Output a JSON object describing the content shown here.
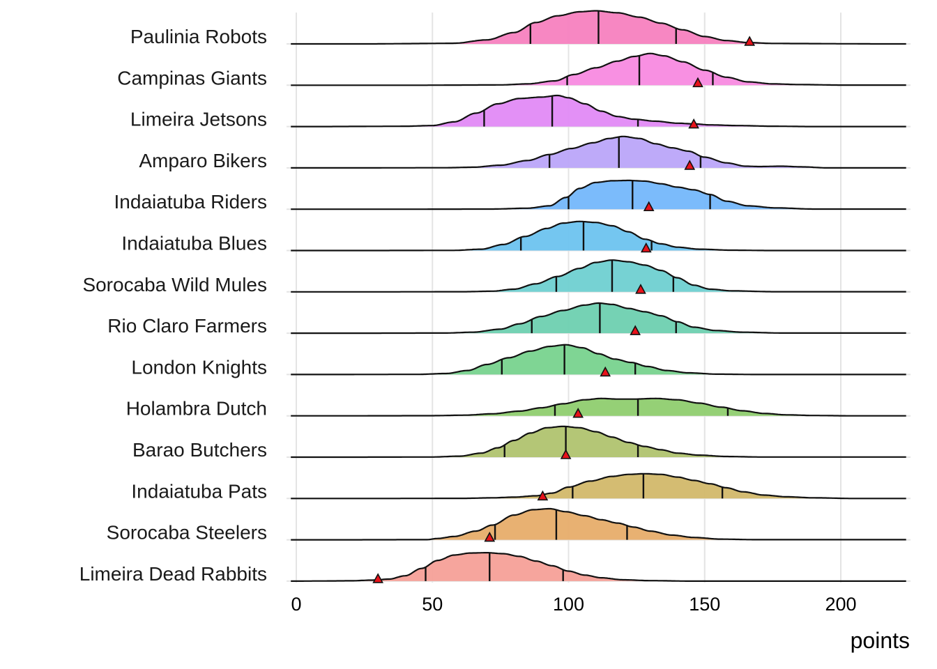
{
  "chart_data": {
    "type": "ridgeline",
    "title": "",
    "xlabel": "points",
    "ylabel": "",
    "xlim": [
      -2,
      224
    ],
    "x_ticks": [
      0,
      50,
      100,
      150,
      200
    ],
    "grid": true,
    "quantile_lines": "quartiles (25th, 50th, 75th percentile)",
    "point_marker": "red triangle",
    "series": [
      {
        "name": "Paulinia Robots",
        "color": "#f781bf",
        "q1": 86,
        "median": 111,
        "q3": 139.5,
        "point": 166.5,
        "density": [
          [
            58,
            0.02
          ],
          [
            70,
            0.12
          ],
          [
            80,
            0.34
          ],
          [
            88,
            0.64
          ],
          [
            96,
            0.84
          ],
          [
            104,
            0.96
          ],
          [
            110,
            0.99
          ],
          [
            118,
            0.93
          ],
          [
            126,
            0.8
          ],
          [
            134,
            0.62
          ],
          [
            142,
            0.42
          ],
          [
            150,
            0.22
          ],
          [
            158,
            0.1
          ],
          [
            166,
            0.04
          ],
          [
            175,
            0.015
          ],
          [
            185,
            0.01
          ],
          [
            200,
            0.005
          ],
          [
            215,
            0.0
          ]
        ]
      },
      {
        "name": "Campinas Giants",
        "color": "#f88ae0",
        "q1": 99.5,
        "median": 126,
        "q3": 153,
        "point": 147.5,
        "density": [
          [
            75,
            0.01
          ],
          [
            85,
            0.04
          ],
          [
            95,
            0.13
          ],
          [
            102,
            0.32
          ],
          [
            110,
            0.52
          ],
          [
            118,
            0.72
          ],
          [
            124,
            0.86
          ],
          [
            130,
            0.95
          ],
          [
            135,
            0.88
          ],
          [
            142,
            0.7
          ],
          [
            150,
            0.45
          ],
          [
            158,
            0.24
          ],
          [
            166,
            0.1
          ],
          [
            175,
            0.04
          ],
          [
            185,
            0.02
          ],
          [
            200,
            0.005
          ]
        ]
      },
      {
        "name": "Limeira Jetsons",
        "color": "#e28af6",
        "q1": 69,
        "median": 94,
        "q3": 125.5,
        "point": 146,
        "density": [
          [
            40,
            0.01
          ],
          [
            50,
            0.03
          ],
          [
            58,
            0.14
          ],
          [
            66,
            0.4
          ],
          [
            74,
            0.68
          ],
          [
            82,
            0.84
          ],
          [
            90,
            0.88
          ],
          [
            96,
            0.93
          ],
          [
            100,
            0.86
          ],
          [
            106,
            0.68
          ],
          [
            112,
            0.46
          ],
          [
            118,
            0.3
          ],
          [
            124,
            0.22
          ],
          [
            132,
            0.16
          ],
          [
            140,
            0.1
          ],
          [
            146,
            0.08
          ],
          [
            152,
            0.05
          ],
          [
            162,
            0.03
          ],
          [
            175,
            0.01
          ],
          [
            190,
            0.0
          ]
        ]
      },
      {
        "name": "Amparo Bikers",
        "color": "#bba5f9",
        "q1": 93,
        "median": 118.5,
        "q3": 148.5,
        "point": 144.5,
        "density": [
          [
            55,
            0.005
          ],
          [
            65,
            0.02
          ],
          [
            75,
            0.08
          ],
          [
            85,
            0.22
          ],
          [
            93,
            0.4
          ],
          [
            101,
            0.58
          ],
          [
            109,
            0.75
          ],
          [
            115,
            0.88
          ],
          [
            120,
            0.94
          ],
          [
            126,
            0.88
          ],
          [
            132,
            0.72
          ],
          [
            138,
            0.6
          ],
          [
            144,
            0.5
          ],
          [
            150,
            0.32
          ],
          [
            158,
            0.15
          ],
          [
            165,
            0.05
          ],
          [
            170,
            0.04
          ],
          [
            178,
            0.05
          ],
          [
            186,
            0.03
          ],
          [
            195,
            0.0
          ]
        ]
      },
      {
        "name": "Indaiatuba Riders",
        "color": "#74b7fb",
        "q1": 100,
        "median": 123.5,
        "q3": 152,
        "point": 129.5,
        "density": [
          [
            72,
            0.005
          ],
          [
            85,
            0.03
          ],
          [
            93,
            0.1
          ],
          [
            99,
            0.35
          ],
          [
            104,
            0.62
          ],
          [
            110,
            0.8
          ],
          [
            116,
            0.85
          ],
          [
            122,
            0.86
          ],
          [
            128,
            0.84
          ],
          [
            134,
            0.76
          ],
          [
            140,
            0.66
          ],
          [
            146,
            0.58
          ],
          [
            152,
            0.44
          ],
          [
            158,
            0.24
          ],
          [
            166,
            0.1
          ],
          [
            176,
            0.04
          ],
          [
            190,
            0.005
          ]
        ]
      },
      {
        "name": "Indaiatuba Blues",
        "color": "#6dc3ef",
        "q1": 82.5,
        "median": 105.5,
        "q3": 130.5,
        "point": 128.5,
        "density": [
          [
            58,
            0.005
          ],
          [
            68,
            0.04
          ],
          [
            76,
            0.18
          ],
          [
            84,
            0.42
          ],
          [
            92,
            0.66
          ],
          [
            98,
            0.82
          ],
          [
            104,
            0.87
          ],
          [
            110,
            0.84
          ],
          [
            116,
            0.74
          ],
          [
            122,
            0.56
          ],
          [
            128,
            0.34
          ],
          [
            134,
            0.2
          ],
          [
            140,
            0.1
          ],
          [
            148,
            0.04
          ],
          [
            160,
            0.01
          ],
          [
            175,
            0.0
          ]
        ]
      },
      {
        "name": "Sorocaba Wild Mules",
        "color": "#6fd0d1",
        "q1": 95.5,
        "median": 116,
        "q3": 138.5,
        "point": 126.5,
        "density": [
          [
            62,
            0.005
          ],
          [
            72,
            0.02
          ],
          [
            80,
            0.08
          ],
          [
            88,
            0.24
          ],
          [
            96,
            0.46
          ],
          [
            104,
            0.7
          ],
          [
            110,
            0.88
          ],
          [
            116,
            0.95
          ],
          [
            122,
            0.9
          ],
          [
            128,
            0.8
          ],
          [
            134,
            0.64
          ],
          [
            140,
            0.42
          ],
          [
            146,
            0.2
          ],
          [
            152,
            0.08
          ],
          [
            160,
            0.03
          ],
          [
            175,
            0.005
          ]
        ]
      },
      {
        "name": "Rio Claro Farmers",
        "color": "#6ed0b0",
        "q1": 86.5,
        "median": 111.5,
        "q3": 139.5,
        "point": 124.5,
        "density": [
          [
            55,
            0.005
          ],
          [
            65,
            0.03
          ],
          [
            75,
            0.12
          ],
          [
            82,
            0.28
          ],
          [
            90,
            0.5
          ],
          [
            98,
            0.68
          ],
          [
            106,
            0.84
          ],
          [
            111,
            0.9
          ],
          [
            116,
            0.86
          ],
          [
            122,
            0.74
          ],
          [
            128,
            0.64
          ],
          [
            134,
            0.52
          ],
          [
            140,
            0.34
          ],
          [
            146,
            0.18
          ],
          [
            154,
            0.08
          ],
          [
            164,
            0.03
          ],
          [
            178,
            0.005
          ]
        ]
      },
      {
        "name": "London Knights",
        "color": "#78d38e",
        "q1": 75.5,
        "median": 98.5,
        "q3": 124.5,
        "point": 113.5,
        "density": [
          [
            45,
            0.005
          ],
          [
            55,
            0.03
          ],
          [
            63,
            0.12
          ],
          [
            70,
            0.3
          ],
          [
            78,
            0.5
          ],
          [
            86,
            0.7
          ],
          [
            93,
            0.84
          ],
          [
            99,
            0.89
          ],
          [
            105,
            0.8
          ],
          [
            111,
            0.62
          ],
          [
            117,
            0.46
          ],
          [
            123,
            0.36
          ],
          [
            129,
            0.24
          ],
          [
            136,
            0.12
          ],
          [
            144,
            0.05
          ],
          [
            155,
            0.01
          ],
          [
            170,
            0.0
          ]
        ]
      },
      {
        "name": "Holambra Dutch",
        "color": "#8fcd6f",
        "q1": 95,
        "median": 125.5,
        "q3": 158.5,
        "point": 103.5,
        "density": [
          [
            50,
            0.005
          ],
          [
            62,
            0.02
          ],
          [
            72,
            0.06
          ],
          [
            82,
            0.14
          ],
          [
            90,
            0.24
          ],
          [
            98,
            0.36
          ],
          [
            106,
            0.48
          ],
          [
            112,
            0.52
          ],
          [
            118,
            0.5
          ],
          [
            124,
            0.5
          ],
          [
            132,
            0.52
          ],
          [
            140,
            0.48
          ],
          [
            148,
            0.38
          ],
          [
            156,
            0.26
          ],
          [
            164,
            0.15
          ],
          [
            172,
            0.07
          ],
          [
            180,
            0.03
          ],
          [
            190,
            0.01
          ],
          [
            205,
            0.0
          ]
        ]
      },
      {
        "name": "Barao Butchers",
        "color": "#b0c36f",
        "q1": 76.5,
        "median": 99,
        "q3": 125.5,
        "point": 99,
        "density": [
          [
            50,
            0.005
          ],
          [
            60,
            0.03
          ],
          [
            68,
            0.12
          ],
          [
            74,
            0.28
          ],
          [
            80,
            0.5
          ],
          [
            86,
            0.72
          ],
          [
            92,
            0.88
          ],
          [
            98,
            0.92
          ],
          [
            104,
            0.88
          ],
          [
            110,
            0.76
          ],
          [
            116,
            0.6
          ],
          [
            122,
            0.44
          ],
          [
            128,
            0.32
          ],
          [
            134,
            0.22
          ],
          [
            140,
            0.12
          ],
          [
            148,
            0.06
          ],
          [
            158,
            0.02
          ],
          [
            170,
            0.005
          ]
        ]
      },
      {
        "name": "Indaiatuba Pats",
        "color": "#d2b86a",
        "q1": 101.5,
        "median": 127.5,
        "q3": 156.5,
        "point": 90.5,
        "density": [
          [
            62,
            0.005
          ],
          [
            72,
            0.02
          ],
          [
            80,
            0.04
          ],
          [
            88,
            0.08
          ],
          [
            94,
            0.16
          ],
          [
            100,
            0.34
          ],
          [
            108,
            0.52
          ],
          [
            116,
            0.66
          ],
          [
            122,
            0.72
          ],
          [
            128,
            0.74
          ],
          [
            134,
            0.72
          ],
          [
            140,
            0.64
          ],
          [
            146,
            0.54
          ],
          [
            152,
            0.44
          ],
          [
            158,
            0.32
          ],
          [
            164,
            0.2
          ],
          [
            172,
            0.1
          ],
          [
            180,
            0.05
          ],
          [
            190,
            0.02
          ],
          [
            205,
            0.0
          ]
        ]
      },
      {
        "name": "Sorocaba Steelers",
        "color": "#e7ad6a",
        "q1": 73,
        "median": 95.5,
        "q3": 121.5,
        "point": 71,
        "density": [
          [
            48,
            0.005
          ],
          [
            52,
            0.04
          ],
          [
            58,
            0.1
          ],
          [
            66,
            0.26
          ],
          [
            72,
            0.44
          ],
          [
            80,
            0.74
          ],
          [
            87,
            0.9
          ],
          [
            93,
            0.93
          ],
          [
            99,
            0.84
          ],
          [
            106,
            0.72
          ],
          [
            112,
            0.6
          ],
          [
            118,
            0.5
          ],
          [
            124,
            0.38
          ],
          [
            130,
            0.26
          ],
          [
            138,
            0.14
          ],
          [
            146,
            0.07
          ],
          [
            156,
            0.02
          ],
          [
            168,
            0.005
          ]
        ]
      },
      {
        "name": "Limeira Dead Rabbits",
        "color": "#f5a098",
        "q1": 47.5,
        "median": 71,
        "q3": 98,
        "point": 30,
        "density": [
          [
            0,
            0.0
          ],
          [
            10,
            0.005
          ],
          [
            20,
            0.01
          ],
          [
            28,
            0.03
          ],
          [
            34,
            0.06
          ],
          [
            40,
            0.16
          ],
          [
            46,
            0.38
          ],
          [
            52,
            0.62
          ],
          [
            58,
            0.78
          ],
          [
            64,
            0.84
          ],
          [
            70,
            0.85
          ],
          [
            76,
            0.82
          ],
          [
            82,
            0.74
          ],
          [
            88,
            0.6
          ],
          [
            94,
            0.46
          ],
          [
            100,
            0.3
          ],
          [
            106,
            0.18
          ],
          [
            112,
            0.1
          ],
          [
            120,
            0.04
          ],
          [
            130,
            0.015
          ],
          [
            145,
            0.0
          ]
        ]
      }
    ]
  }
}
